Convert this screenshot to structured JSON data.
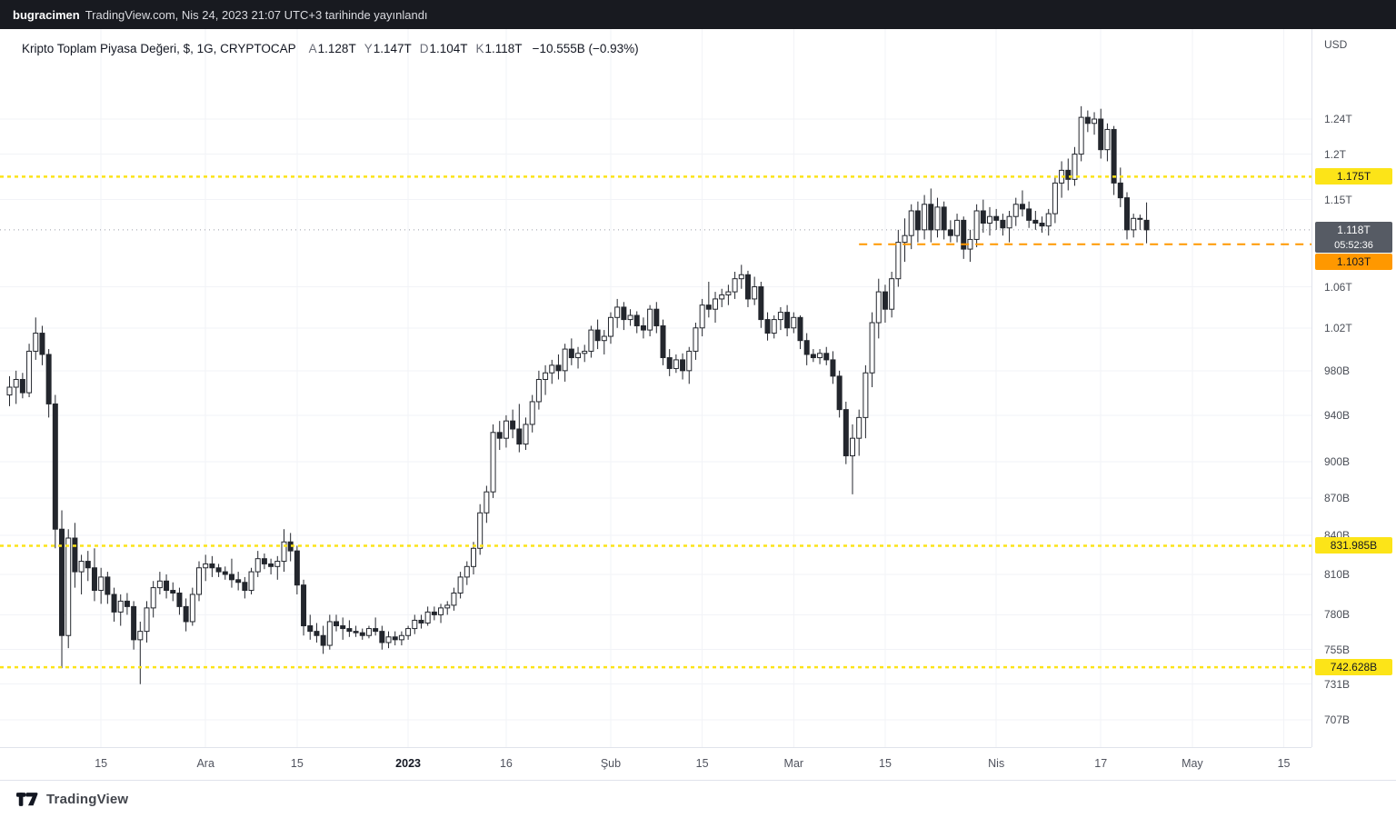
{
  "topbar": {
    "author": "bugracimen",
    "published": "TradingView.com, Nis 24, 2023 21:07 UTC+3 tarihinde yayınlandı"
  },
  "header": {
    "title": "Kripto Toplam Piyasa Değeri, $, 1G, CRYPTOCAP",
    "ohlc": [
      {
        "label": "A",
        "value": "1.128T"
      },
      {
        "label": "Y",
        "value": "1.147T"
      },
      {
        "label": "D",
        "value": "1.104T"
      },
      {
        "label": "K",
        "value": "1.118T"
      }
    ],
    "change": "−10.555B (−0.93%)"
  },
  "footer": {
    "brand": "TradingView"
  },
  "colors": {
    "yellow": "#fce418",
    "orange": "#ff9800",
    "lastbg": "#565b64",
    "last_line": "#9a9da6",
    "candle": "#23262d",
    "up": "#ffffff",
    "grid": "#f2f3f7"
  },
  "chart_data": {
    "type": "candlestick",
    "title": "Kripto Toplam Piyasa Değeri",
    "symbol": "CRYPTOCAP",
    "interval": "1G",
    "currency": "USD",
    "unit": "billions USD",
    "scale": "log",
    "last_price": {
      "label": "1.118T",
      "price": 1118,
      "countdown": "05:52:36"
    },
    "levels": [
      {
        "label": "1.175T",
        "price": 1175,
        "kind": "yellow",
        "from_day": null
      },
      {
        "label": "1.103T",
        "price": 1103,
        "kind": "orange",
        "from_day": 130
      },
      {
        "label": "831.985B",
        "price": 831.985,
        "kind": "yellow",
        "from_day": null
      },
      {
        "label": "742.628B",
        "price": 742.628,
        "kind": "yellow",
        "from_day": null
      }
    ],
    "y_axis": {
      "ticks": [
        {
          "label": "1.24T",
          "price": 1240
        },
        {
          "label": "1.2T",
          "price": 1200
        },
        {
          "label": "1.15T",
          "price": 1150
        },
        {
          "label": "1.06T",
          "price": 1060
        },
        {
          "label": "1.02T",
          "price": 1020
        },
        {
          "label": "980B",
          "price": 980
        },
        {
          "label": "940B",
          "price": 940
        },
        {
          "label": "900B",
          "price": 900
        },
        {
          "label": "870B",
          "price": 870
        },
        {
          "label": "840B",
          "price": 840
        },
        {
          "label": "810B",
          "price": 810
        },
        {
          "label": "780B",
          "price": 780
        },
        {
          "label": "755B",
          "price": 755
        },
        {
          "label": "731B",
          "price": 731
        },
        {
          "label": "707B",
          "price": 707
        }
      ]
    },
    "x_axis": {
      "labels": [
        {
          "label": "15",
          "day": 14
        },
        {
          "label": "Ara",
          "day": 30,
          "major": true
        },
        {
          "label": "15",
          "day": 44
        },
        {
          "label": "2023",
          "day": 61,
          "major": true,
          "bold": true
        },
        {
          "label": "16",
          "day": 76
        },
        {
          "label": "Şub",
          "day": 92,
          "major": true
        },
        {
          "label": "15",
          "day": 106
        },
        {
          "label": "Mar",
          "day": 120,
          "major": true
        },
        {
          "label": "15",
          "day": 134
        },
        {
          "label": "Nis",
          "day": 151,
          "major": true
        },
        {
          "label": "17",
          "day": 167
        },
        {
          "label": "May",
          "day": 181,
          "major": true
        },
        {
          "label": "15",
          "day": 195
        }
      ]
    },
    "candles": [
      [
        958,
        975,
        948,
        965
      ],
      [
        965,
        980,
        950,
        972
      ],
      [
        972,
        978,
        955,
        960
      ],
      [
        960,
        1005,
        956,
        998
      ],
      [
        998,
        1030,
        990,
        1015
      ],
      [
        1015,
        1022,
        985,
        995
      ],
      [
        995,
        1000,
        938,
        950
      ],
      [
        950,
        958,
        830,
        845
      ],
      [
        845,
        860,
        742,
        765
      ],
      [
        765,
        845,
        756,
        838
      ],
      [
        838,
        850,
        800,
        812
      ],
      [
        812,
        825,
        795,
        820
      ],
      [
        820,
        828,
        805,
        815
      ],
      [
        815,
        830,
        790,
        798
      ],
      [
        798,
        815,
        788,
        808
      ],
      [
        808,
        812,
        788,
        795
      ],
      [
        795,
        800,
        775,
        782
      ],
      [
        782,
        795,
        772,
        790
      ],
      [
        790,
        796,
        780,
        786
      ],
      [
        786,
        790,
        755,
        762
      ],
      [
        762,
        775,
        731,
        768
      ],
      [
        768,
        790,
        760,
        785
      ],
      [
        785,
        805,
        778,
        800
      ],
      [
        800,
        812,
        795,
        805
      ],
      [
        805,
        810,
        792,
        798
      ],
      [
        798,
        804,
        790,
        796
      ],
      [
        796,
        800,
        780,
        786
      ],
      [
        786,
        792,
        768,
        775
      ],
      [
        775,
        800,
        772,
        795
      ],
      [
        795,
        820,
        790,
        815
      ],
      [
        815,
        825,
        805,
        818
      ],
      [
        818,
        824,
        808,
        815
      ],
      [
        815,
        818,
        808,
        812
      ],
      [
        812,
        816,
        806,
        810
      ],
      [
        810,
        822,
        800,
        806
      ],
      [
        806,
        812,
        798,
        804
      ],
      [
        804,
        808,
        792,
        798
      ],
      [
        798,
        815,
        795,
        812
      ],
      [
        812,
        828,
        808,
        822
      ],
      [
        822,
        826,
        814,
        818
      ],
      [
        818,
        822,
        810,
        816
      ],
      [
        816,
        824,
        806,
        820
      ],
      [
        820,
        845,
        812,
        835
      ],
      [
        835,
        842,
        820,
        828
      ],
      [
        828,
        832,
        795,
        802
      ],
      [
        802,
        806,
        765,
        772
      ],
      [
        772,
        780,
        762,
        768
      ],
      [
        768,
        774,
        760,
        765
      ],
      [
        765,
        772,
        752,
        758
      ],
      [
        758,
        780,
        755,
        775
      ],
      [
        775,
        780,
        768,
        772
      ],
      [
        772,
        778,
        762,
        770
      ],
      [
        770,
        776,
        764,
        768
      ],
      [
        768,
        772,
        764,
        767
      ],
      [
        767,
        770,
        762,
        765
      ],
      [
        765,
        772,
        763,
        770
      ],
      [
        770,
        778,
        765,
        768
      ],
      [
        768,
        772,
        755,
        760
      ],
      [
        760,
        768,
        756,
        764
      ],
      [
        764,
        768,
        758,
        762
      ],
      [
        762,
        768,
        758,
        765
      ],
      [
        765,
        772,
        762,
        770
      ],
      [
        770,
        780,
        766,
        776
      ],
      [
        776,
        780,
        770,
        774
      ],
      [
        774,
        786,
        772,
        782
      ],
      [
        782,
        786,
        776,
        780
      ],
      [
        780,
        788,
        774,
        785
      ],
      [
        785,
        790,
        780,
        787
      ],
      [
        787,
        800,
        783,
        796
      ],
      [
        796,
        812,
        792,
        808
      ],
      [
        808,
        820,
        802,
        816
      ],
      [
        816,
        835,
        810,
        830
      ],
      [
        830,
        865,
        825,
        858
      ],
      [
        858,
        880,
        850,
        875
      ],
      [
        875,
        932,
        870,
        925
      ],
      [
        925,
        935,
        910,
        920
      ],
      [
        920,
        940,
        912,
        935
      ],
      [
        935,
        945,
        920,
        928
      ],
      [
        928,
        950,
        908,
        915
      ],
      [
        915,
        938,
        910,
        932
      ],
      [
        932,
        958,
        925,
        952
      ],
      [
        952,
        980,
        945,
        972
      ],
      [
        972,
        985,
        958,
        978
      ],
      [
        978,
        990,
        968,
        985
      ],
      [
        985,
        995,
        972,
        980
      ],
      [
        980,
        1005,
        970,
        1000
      ],
      [
        1000,
        1010,
        985,
        992
      ],
      [
        992,
        1002,
        982,
        996
      ],
      [
        996,
        1004,
        988,
        998
      ],
      [
        998,
        1022,
        992,
        1018
      ],
      [
        1018,
        1028,
        1000,
        1008
      ],
      [
        1008,
        1018,
        995,
        1012
      ],
      [
        1012,
        1035,
        1005,
        1030
      ],
      [
        1030,
        1048,
        1020,
        1040
      ],
      [
        1040,
        1045,
        1018,
        1028
      ],
      [
        1028,
        1038,
        1022,
        1032
      ],
      [
        1032,
        1036,
        1015,
        1022
      ],
      [
        1022,
        1030,
        1010,
        1018
      ],
      [
        1018,
        1042,
        1012,
        1038
      ],
      [
        1038,
        1045,
        1015,
        1022
      ],
      [
        1022,
        1028,
        985,
        992
      ],
      [
        992,
        1000,
        975,
        982
      ],
      [
        982,
        995,
        978,
        990
      ],
      [
        990,
        996,
        972,
        980
      ],
      [
        980,
        1002,
        968,
        998
      ],
      [
        998,
        1025,
        990,
        1020
      ],
      [
        1020,
        1048,
        1012,
        1042
      ],
      [
        1042,
        1065,
        1030,
        1038
      ],
      [
        1038,
        1055,
        1025,
        1048
      ],
      [
        1048,
        1058,
        1040,
        1052
      ],
      [
        1052,
        1062,
        1042,
        1055
      ],
      [
        1055,
        1075,
        1048,
        1068
      ],
      [
        1068,
        1082,
        1058,
        1072
      ],
      [
        1072,
        1076,
        1040,
        1048
      ],
      [
        1048,
        1070,
        1042,
        1060
      ],
      [
        1060,
        1065,
        1020,
        1028
      ],
      [
        1028,
        1035,
        1008,
        1015
      ],
      [
        1015,
        1032,
        1010,
        1028
      ],
      [
        1028,
        1040,
        1018,
        1035
      ],
      [
        1035,
        1042,
        1012,
        1020
      ],
      [
        1020,
        1035,
        1015,
        1030
      ],
      [
        1030,
        1032,
        1000,
        1008
      ],
      [
        1008,
        1015,
        985,
        995
      ],
      [
        995,
        1000,
        988,
        992
      ],
      [
        992,
        1000,
        986,
        996
      ],
      [
        996,
        1002,
        985,
        990
      ],
      [
        990,
        998,
        968,
        975
      ],
      [
        975,
        980,
        938,
        945
      ],
      [
        945,
        952,
        898,
        905
      ],
      [
        905,
        932,
        873,
        920
      ],
      [
        920,
        945,
        905,
        938
      ],
      [
        938,
        985,
        920,
        978
      ],
      [
        978,
        1035,
        965,
        1025
      ],
      [
        1025,
        1068,
        1010,
        1055
      ],
      [
        1055,
        1062,
        1025,
        1038
      ],
      [
        1038,
        1075,
        1030,
        1068
      ],
      [
        1068,
        1118,
        1060,
        1105
      ],
      [
        1105,
        1130,
        1085,
        1112
      ],
      [
        1112,
        1145,
        1098,
        1138
      ],
      [
        1138,
        1148,
        1105,
        1118
      ],
      [
        1118,
        1155,
        1108,
        1145
      ],
      [
        1145,
        1162,
        1105,
        1118
      ],
      [
        1118,
        1152,
        1110,
        1142
      ],
      [
        1142,
        1148,
        1108,
        1118
      ],
      [
        1118,
        1128,
        1105,
        1112
      ],
      [
        1112,
        1135,
        1105,
        1128
      ],
      [
        1128,
        1132,
        1088,
        1098
      ],
      [
        1098,
        1118,
        1085,
        1108
      ],
      [
        1108,
        1145,
        1100,
        1138
      ],
      [
        1138,
        1150,
        1115,
        1125
      ],
      [
        1125,
        1142,
        1112,
        1132
      ],
      [
        1132,
        1140,
        1118,
        1128
      ],
      [
        1128,
        1135,
        1112,
        1120
      ],
      [
        1120,
        1138,
        1105,
        1132
      ],
      [
        1132,
        1152,
        1122,
        1145
      ],
      [
        1145,
        1160,
        1132,
        1140
      ],
      [
        1140,
        1148,
        1120,
        1128
      ],
      [
        1128,
        1138,
        1118,
        1125
      ],
      [
        1125,
        1132,
        1115,
        1122
      ],
      [
        1122,
        1140,
        1112,
        1135
      ],
      [
        1135,
        1175,
        1125,
        1168
      ],
      [
        1168,
        1192,
        1152,
        1182
      ],
      [
        1182,
        1195,
        1160,
        1172
      ],
      [
        1172,
        1208,
        1165,
        1200
      ],
      [
        1200,
        1255,
        1192,
        1242
      ],
      [
        1242,
        1250,
        1225,
        1235
      ],
      [
        1235,
        1248,
        1222,
        1240
      ],
      [
        1240,
        1252,
        1195,
        1205
      ],
      [
        1205,
        1235,
        1192,
        1228
      ],
      [
        1228,
        1232,
        1155,
        1168
      ],
      [
        1168,
        1185,
        1142,
        1152
      ],
      [
        1152,
        1158,
        1108,
        1118
      ],
      [
        1118,
        1135,
        1110,
        1130
      ],
      [
        1130,
        1134,
        1118,
        1129
      ],
      [
        1128,
        1147,
        1104,
        1118
      ]
    ]
  }
}
